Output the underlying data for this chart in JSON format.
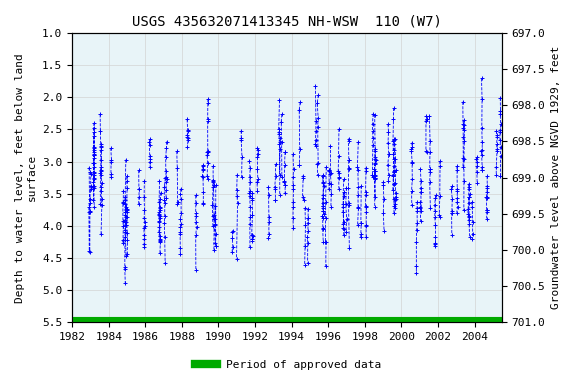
{
  "title": "USGS 435632071413345 NH-WSW  110 (W7)",
  "ylabel_left": "Depth to water level, feet below land\nsurface",
  "ylabel_right": "Groundwater level above NGVD 1929, feet",
  "ylim_left": [
    1.0,
    5.5
  ],
  "ylim_right": [
    697.0,
    701.0
  ],
  "xlim": [
    1982.0,
    2005.5
  ],
  "xticks": [
    1982,
    1984,
    1986,
    1988,
    1990,
    1992,
    1994,
    1996,
    1998,
    2000,
    2002,
    2004
  ],
  "yticks_left": [
    1.0,
    1.5,
    2.0,
    2.5,
    3.0,
    3.5,
    4.0,
    4.5,
    5.0,
    5.5
  ],
  "yticks_right": [
    697.0,
    697.5,
    698.0,
    698.5,
    699.0,
    699.5,
    700.0,
    700.5,
    701.0
  ],
  "line_color": "#0000FF",
  "marker": "+",
  "linestyle": "--",
  "bg_color": "#e8f4f8",
  "plot_bg": "#ffffff",
  "green_bar_color": "#00AA00",
  "legend_label": "Period of approved data",
  "title_fontsize": 10,
  "label_fontsize": 8,
  "tick_fontsize": 8,
  "ref_elevation": 702.0,
  "seed": 42
}
